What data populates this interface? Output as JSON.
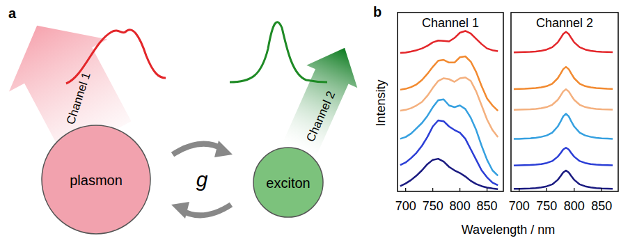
{
  "panel_a": {
    "label": "a",
    "nodes": [
      {
        "label": "plasmon"
      },
      {
        "label": "exciton"
      }
    ],
    "coupling": "g",
    "channels": [
      {
        "label": "Channel 1"
      },
      {
        "label": "Channel 2"
      }
    ]
  },
  "panel_b": {
    "label": "b",
    "xlabel": "Wavelength / nm",
    "ylabel": "Intensity"
  },
  "chart_data": [
    {
      "type": "line",
      "title": "Channel 1",
      "tick_labels": "x",
      "xlim": [
        685,
        880
      ],
      "xticks": [
        700,
        750,
        800,
        850
      ],
      "ylim": [
        0,
        10.2
      ],
      "x": [
        690,
        700,
        710,
        720,
        730,
        740,
        750,
        760,
        770,
        780,
        790,
        800,
        810,
        820,
        830,
        840,
        850,
        860,
        870
      ],
      "series": [
        {
          "color": "#e3262a",
          "values": [
            7.9,
            7.92,
            7.98,
            8.05,
            8.15,
            8.3,
            8.5,
            8.6,
            8.58,
            8.55,
            8.75,
            9.05,
            9.15,
            9.0,
            8.7,
            8.4,
            8.15,
            8.05,
            8.0
          ]
        },
        {
          "color": "#f28a30",
          "values": [
            5.8,
            5.85,
            5.95,
            6.1,
            6.35,
            6.7,
            7.1,
            7.45,
            7.5,
            7.35,
            7.35,
            7.65,
            7.7,
            7.4,
            6.8,
            6.0,
            5.3,
            4.9,
            4.6
          ]
        },
        {
          "color": "#f4b07e",
          "values": [
            4.6,
            4.65,
            4.75,
            4.9,
            5.1,
            5.45,
            5.9,
            6.3,
            6.45,
            6.4,
            6.25,
            6.45,
            6.5,
            6.3,
            5.7,
            4.9,
            4.1,
            3.5,
            3.1
          ]
        },
        {
          "color": "#35a0e0",
          "values": [
            3.0,
            3.1,
            3.3,
            3.6,
            3.9,
            4.3,
            4.8,
            5.2,
            5.25,
            4.9,
            4.8,
            4.9,
            4.7,
            4.2,
            3.5,
            2.6,
            1.8,
            1.2,
            0.9
          ]
        },
        {
          "color": "#2b3ed6",
          "values": [
            1.5,
            1.65,
            1.9,
            2.2,
            2.6,
            3.1,
            3.7,
            4.05,
            4.0,
            3.7,
            3.5,
            3.35,
            3.0,
            2.4,
            1.8,
            1.2,
            0.8,
            0.5,
            0.35
          ]
        },
        {
          "color": "#1a1a80",
          "values": [
            0.3,
            0.45,
            0.65,
            0.9,
            1.2,
            1.55,
            1.8,
            1.86,
            1.7,
            1.4,
            1.2,
            1.05,
            0.85,
            0.6,
            0.42,
            0.3,
            0.22,
            0.17,
            0.13
          ]
        }
      ]
    },
    {
      "type": "line",
      "title": "Channel 2",
      "tick_labels": "x",
      "xlim": [
        685,
        880
      ],
      "xticks": [
        700,
        750,
        800,
        850
      ],
      "ylim": [
        0,
        10.2
      ],
      "x": [
        690,
        700,
        710,
        720,
        730,
        740,
        750,
        760,
        770,
        775,
        780,
        785,
        790,
        795,
        800,
        810,
        820,
        830,
        840,
        850,
        860,
        870
      ],
      "series": [
        {
          "color": "#e3262a",
          "values": [
            7.93,
            7.94,
            7.95,
            7.96,
            7.98,
            8.02,
            8.09,
            8.22,
            8.5,
            8.73,
            8.98,
            9.1,
            8.98,
            8.73,
            8.5,
            8.22,
            8.09,
            8.02,
            7.98,
            7.96,
            7.95,
            7.94
          ]
        },
        {
          "color": "#f28a30",
          "values": [
            5.83,
            5.84,
            5.85,
            5.87,
            5.89,
            5.93,
            6.0,
            6.14,
            6.45,
            6.7,
            6.97,
            7.1,
            6.97,
            6.7,
            6.45,
            6.14,
            6.0,
            5.93,
            5.89,
            5.87,
            5.85,
            5.84
          ]
        },
        {
          "color": "#f4b07e",
          "values": [
            4.65,
            4.66,
            4.67,
            4.68,
            4.7,
            4.74,
            4.81,
            4.94,
            5.22,
            5.45,
            5.7,
            5.82,
            5.7,
            5.45,
            5.22,
            4.94,
            4.81,
            4.74,
            4.7,
            4.68,
            4.67,
            4.66
          ]
        },
        {
          "color": "#35a0e0",
          "values": [
            3.0,
            3.0,
            3.02,
            3.03,
            3.06,
            3.11,
            3.19,
            3.35,
            3.7,
            3.97,
            4.28,
            4.43,
            4.28,
            3.97,
            3.7,
            3.35,
            3.19,
            3.11,
            3.06,
            3.03,
            3.02,
            3.0
          ]
        },
        {
          "color": "#2b3ed6",
          "values": [
            1.48,
            1.49,
            1.5,
            1.51,
            1.53,
            1.56,
            1.62,
            1.73,
            1.98,
            2.17,
            2.39,
            2.49,
            2.39,
            2.17,
            1.98,
            1.73,
            1.62,
            1.56,
            1.53,
            1.51,
            1.5,
            1.49
          ]
        },
        {
          "color": "#1a1a80",
          "values": [
            0.15,
            0.15,
            0.16,
            0.17,
            0.19,
            0.23,
            0.29,
            0.4,
            0.66,
            0.86,
            1.08,
            1.19,
            1.08,
            0.86,
            0.66,
            0.4,
            0.29,
            0.23,
            0.19,
            0.17,
            0.16,
            0.15
          ]
        }
      ]
    }
  ]
}
